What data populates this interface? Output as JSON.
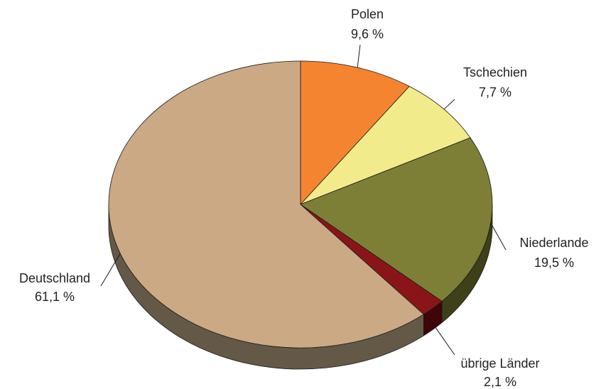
{
  "chart_data": {
    "type": "pie",
    "style": "3d",
    "start": "12 o'clock",
    "direction": "clockwise",
    "slices": [
      {
        "label": "Polen",
        "value": 9.6,
        "value_label": "9,6 %",
        "color": "#F58431",
        "side_color": "#9A4E1A"
      },
      {
        "label": "Tschechien",
        "value": 7.7,
        "value_label": "7,7 %",
        "color": "#F2EB8C",
        "side_color": "#8F8A4F"
      },
      {
        "label": "Niederlande",
        "value": 19.5,
        "value_label": "19,5 %",
        "color": "#7D7F36",
        "side_color": "#3E4019"
      },
      {
        "label": "übrige Länder",
        "value": 2.1,
        "value_label": "2,1 %",
        "color": "#8A1519",
        "side_color": "#3F0508"
      },
      {
        "label": "Deutschland",
        "value": 61.1,
        "value_label": "61,1 %",
        "color": "#CBA985",
        "side_color": "#645847"
      }
    ]
  }
}
